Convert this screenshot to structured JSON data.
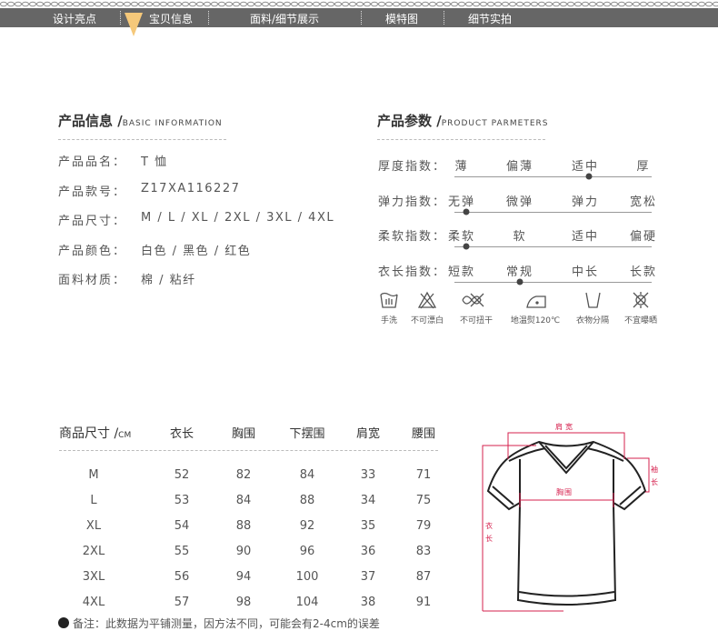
{
  "nav": {
    "items": [
      "设计亮点",
      "宝贝信息",
      "面料/细节展示",
      "模特图",
      "细节实拍"
    ],
    "active": "宝贝信息",
    "accent": "#f5c87a"
  },
  "info": {
    "title": "产品信息 /",
    "subtitle": "BASIC INFORMATION",
    "rows": [
      {
        "label": "产品品名：",
        "value": "T 恤"
      },
      {
        "label": "产品款号：",
        "value": "Z17XA116227"
      },
      {
        "label": "产品尺寸：",
        "value": "M / L / XL / 2XL / 3XL / 4XL"
      },
      {
        "label": "产品颜色：",
        "value": "白色 / 黑色 / 红色"
      },
      {
        "label": "面料材质：",
        "value": "棉 / 粘纤"
      }
    ]
  },
  "params": {
    "title": "产品参数 /",
    "subtitle": "PRODUCT PARMETERS",
    "scales": [
      {
        "label": "厚度指数：",
        "options": [
          "薄",
          "偏薄",
          "适中",
          "厚"
        ],
        "level": 0.68
      },
      {
        "label": "弹力指数：",
        "options": [
          "无弹",
          "微弹",
          "弹力",
          "宽松"
        ],
        "level": 0.06
      },
      {
        "label": "柔软指数：",
        "options": [
          "柔软",
          "软",
          "适中",
          "偏硬"
        ],
        "level": 0.06
      },
      {
        "label": "衣长指数：",
        "options": [
          "短款",
          "常规",
          "中长",
          "长款"
        ],
        "level": 0.33
      }
    ],
    "care": [
      {
        "icon": "hand-wash-icon",
        "label": "手洗"
      },
      {
        "icon": "no-bleach-icon",
        "label": "不可漂白"
      },
      {
        "icon": "no-wring-icon",
        "label": "不可扭干"
      },
      {
        "icon": "low-iron-icon",
        "label": "地温熨120℃"
      },
      {
        "icon": "wash-separately-icon",
        "label": "衣物分隔"
      },
      {
        "icon": "no-sun-icon",
        "label": "不宜曝晒"
      }
    ]
  },
  "size_table": {
    "title": "商品尺寸 /",
    "unit": "CM",
    "headers": [
      "衣长",
      "胸围",
      "下摆围",
      "肩宽",
      "腰围"
    ],
    "rows": [
      [
        "M",
        "52",
        "82",
        "84",
        "33",
        "71"
      ],
      [
        "L",
        "53",
        "84",
        "88",
        "34",
        "75"
      ],
      [
        "XL",
        "54",
        "88",
        "92",
        "35",
        "79"
      ],
      [
        "2XL",
        "55",
        "90",
        "96",
        "36",
        "83"
      ],
      [
        "3XL",
        "56",
        "94",
        "100",
        "37",
        "87"
      ],
      [
        "4XL",
        "57",
        "98",
        "104",
        "38",
        "91"
      ]
    ],
    "note": "备注：此数据为平铺测量，因方法不同，可能会有2-4cm的误差"
  },
  "diagram": {
    "shoulder": "肩宽",
    "chest": "胸围",
    "length": [
      "衣",
      "长"
    ],
    "sleeve": [
      "袖",
      "长"
    ],
    "color": "#d6204e"
  }
}
